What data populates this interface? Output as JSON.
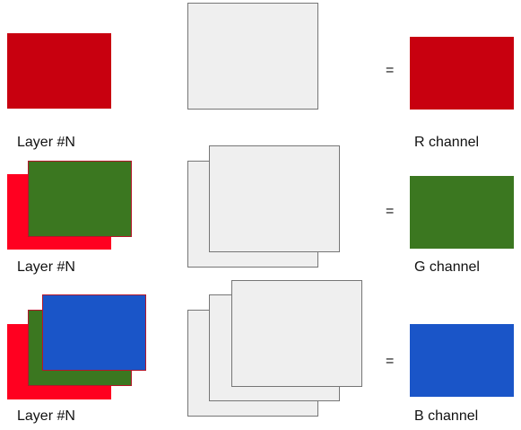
{
  "colors": {
    "red_primary": "#c8000f",
    "red_bright": "#ff0020",
    "green": "#3b7720",
    "blue": "#1a55c8",
    "sheet_fill": "#efefef",
    "sheet_border": "#767676",
    "layer_border": "#b3162a"
  },
  "rows": [
    {
      "layer_label": "Layer #N",
      "equals": "=",
      "channel_label": "R channel"
    },
    {
      "layer_label": "Layer #N",
      "equals": "=",
      "channel_label": "G channel"
    },
    {
      "layer_label": "Layer #N",
      "equals": "=",
      "channel_label": "B channel"
    }
  ]
}
